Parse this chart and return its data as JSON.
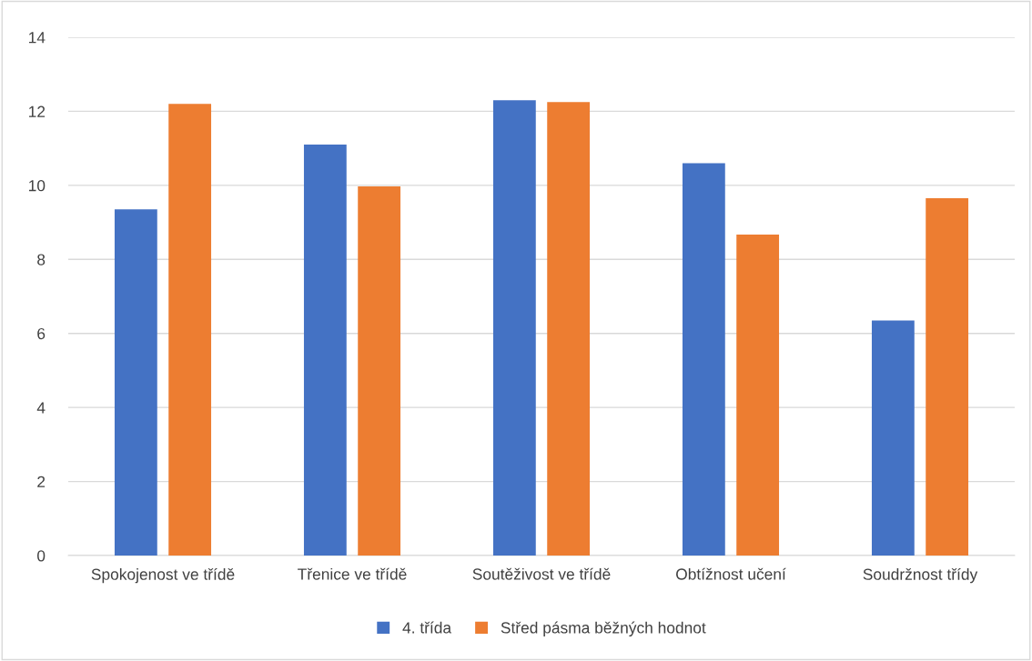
{
  "chart_data": {
    "type": "bar",
    "categories": [
      "Spokojenost ve třídě",
      "Třenice ve třídě",
      "Soutěživost ve třídě",
      "Obtížnost učení",
      "Soudržnost třídy"
    ],
    "series": [
      {
        "name": "4. třída",
        "color": "#4472c4",
        "values": [
          9.35,
          11.1,
          12.3,
          10.6,
          6.35
        ]
      },
      {
        "name": "Střed pásma běžných hodnot",
        "color": "#ed7d31",
        "values": [
          12.2,
          9.97,
          12.25,
          8.67,
          9.65
        ]
      }
    ],
    "ylim": [
      0,
      14
    ],
    "yticks": [
      0,
      2,
      4,
      6,
      8,
      10,
      12,
      14
    ],
    "grid": "y",
    "legend": "bottom"
  }
}
